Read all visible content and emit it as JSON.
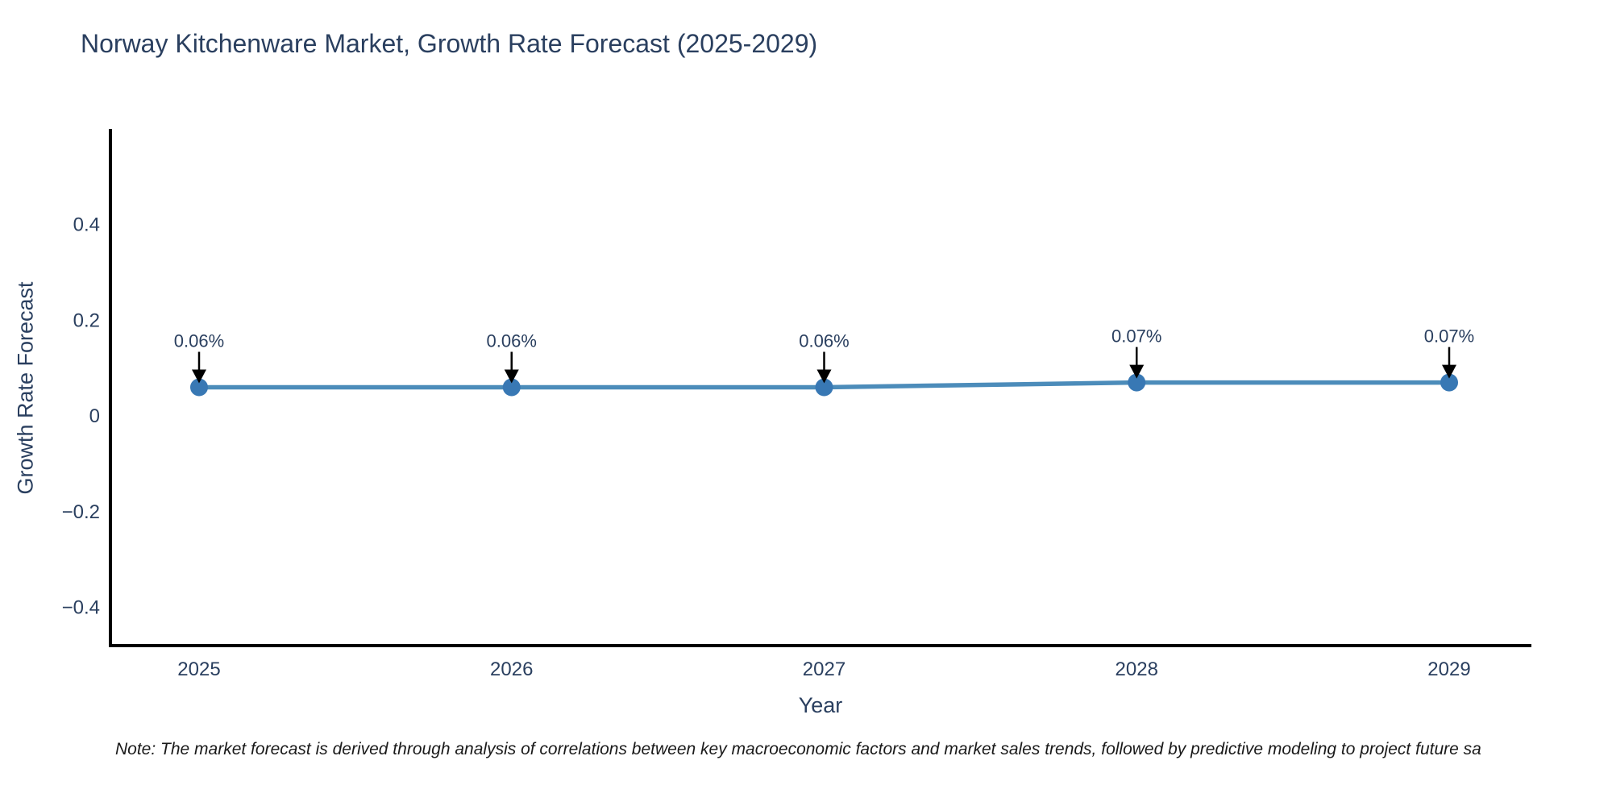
{
  "title": "Norway Kitchenware Market, Growth Rate Forecast (2025-2029)",
  "note": "Note: The market forecast is derived through analysis of correlations between key macroeconomic factors and market sales trends, followed by predictive modeling to project future sa",
  "chart_data": {
    "type": "line",
    "title": "Norway Kitchenware Market, Growth Rate Forecast (2025-2029)",
    "x": [
      2025,
      2026,
      2027,
      2028,
      2029
    ],
    "y": [
      0.06,
      0.06,
      0.06,
      0.07,
      0.07
    ],
    "point_labels": [
      "0.06%",
      "0.06%",
      "0.06%",
      "0.07%",
      "0.07%"
    ],
    "xlabel": "Year",
    "ylabel": "Growth Rate Forecast",
    "x_tick_labels": [
      "2025",
      "2026",
      "2027",
      "2028",
      "2029"
    ],
    "y_ticks": [
      0.4,
      0.2,
      0,
      -0.2,
      -0.4
    ],
    "y_tick_labels": [
      "0.4",
      "0.2",
      "0",
      "−0.2",
      "−0.4"
    ],
    "ylim": [
      -0.48,
      0.6
    ],
    "grid": false,
    "legend": "none",
    "line_color": "#4c8cba",
    "marker_color": "#3878b4",
    "axis_color": "#000000",
    "text_color": "#2a3f5f",
    "annotation_color": "#2a3f5f",
    "arrow_color": "#000000"
  }
}
